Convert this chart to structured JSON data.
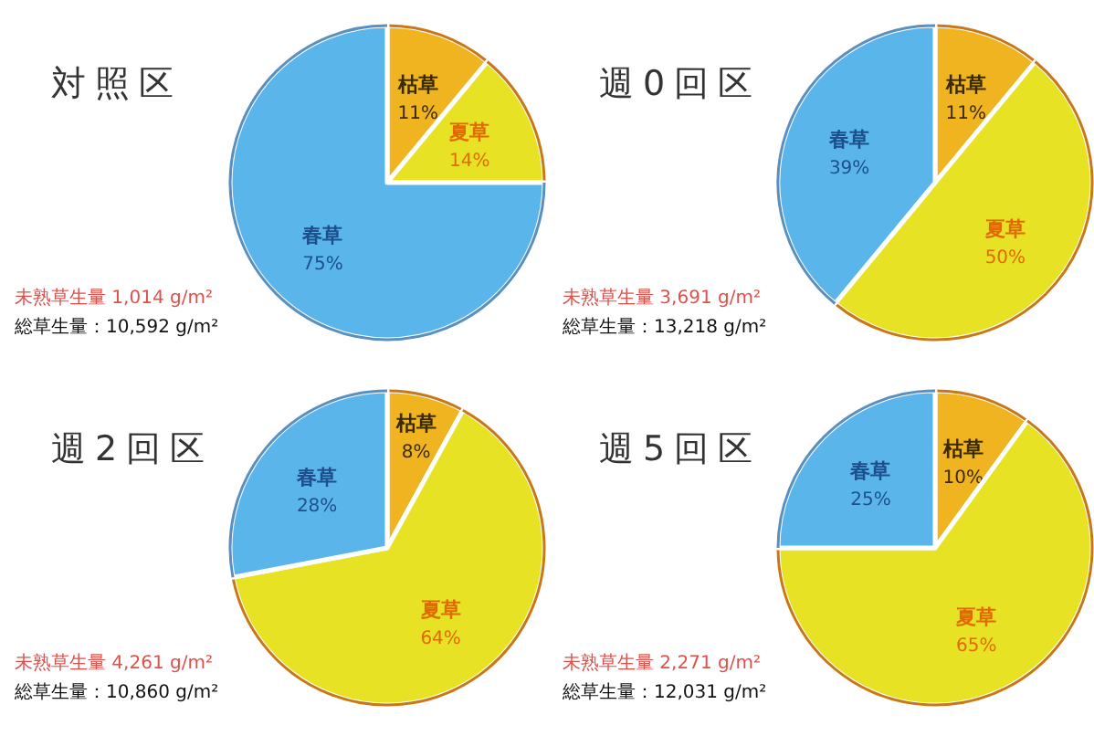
{
  "chart_data": [
    {
      "type": "pie",
      "title": "対照区",
      "categories": [
        "枯草",
        "夏草",
        "春草"
      ],
      "values": [
        11,
        14,
        75
      ],
      "value_labels": [
        "11%",
        "14%",
        "75%"
      ],
      "colors": [
        "#f0b420",
        "#e8e224",
        "#5ab6ea"
      ],
      "annotations": [
        "未熟草生量 1,014 g/m²",
        "総草生量：10,592 g/m²"
      ]
    },
    {
      "type": "pie",
      "title": "週0回区",
      "categories": [
        "枯草",
        "夏草",
        "春草"
      ],
      "values": [
        11,
        50,
        39
      ],
      "value_labels": [
        "11%",
        "50%",
        "39%"
      ],
      "colors": [
        "#f0b420",
        "#e8e224",
        "#5ab6ea"
      ],
      "annotations": [
        "未熟草生量 3,691 g/m²",
        "総草生量：13,218 g/m²"
      ]
    },
    {
      "type": "pie",
      "title": "週2回区",
      "categories": [
        "枯草",
        "夏草",
        "春草"
      ],
      "values": [
        8,
        64,
        28
      ],
      "value_labels": [
        "8%",
        "64%",
        "28%"
      ],
      "colors": [
        "#f0b420",
        "#e8e224",
        "#5ab6ea"
      ],
      "annotations": [
        "未熟草生量 4,261 g/m²",
        "総草生量：10,860 g/m²"
      ]
    },
    {
      "type": "pie",
      "title": "週5回区",
      "categories": [
        "枯草",
        "夏草",
        "春草"
      ],
      "values": [
        10,
        65,
        25
      ],
      "value_labels": [
        "10%",
        "65%",
        "25%"
      ],
      "colors": [
        "#f0b420",
        "#e8e224",
        "#5ab6ea"
      ],
      "annotations": [
        "未熟草生量 2,271 g/m²",
        "総草生量：12,031 g/m²"
      ]
    }
  ]
}
